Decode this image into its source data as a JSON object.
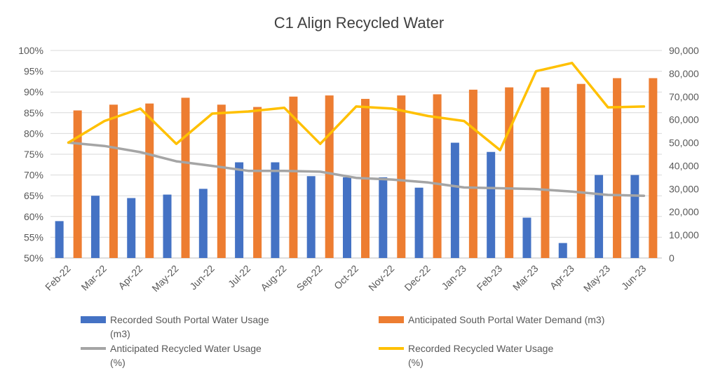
{
  "chart_data": {
    "type": "bar",
    "title": "C1 Align Recycled Water",
    "categories": [
      "Feb-22",
      "Mar-22",
      "Apr-22",
      "May-22",
      "Jun-22",
      "Jul-22",
      "Aug-22",
      "Sep-22",
      "Oct-22",
      "Nov-22",
      "Dec-22",
      "Jan-23",
      "Feb-23",
      "Mar-23",
      "Apr-23",
      "May-23",
      "Jun-23"
    ],
    "left_axis": {
      "ticks": [
        "50%",
        "55%",
        "60%",
        "65%",
        "70%",
        "75%",
        "80%",
        "85%",
        "90%",
        "95%",
        "100%"
      ],
      "ylim": [
        50,
        100
      ],
      "unit": "%"
    },
    "right_axis": {
      "ticks": [
        "0",
        "10,000",
        "20,000",
        "30,000",
        "40,000",
        "50,000",
        "60,000",
        "70,000",
        "80,000",
        "90,000"
      ],
      "ylim": [
        0,
        90000
      ]
    },
    "grid": true,
    "legend_position": "bottom",
    "series": [
      {
        "name": "Recorded South Portal Water Usage (m3)",
        "kind": "bar",
        "axis": "right",
        "color": "#4472C4",
        "values": [
          16000,
          27000,
          26000,
          27500,
          30000,
          41500,
          41500,
          35500,
          35000,
          35000,
          30500,
          50000,
          46000,
          17500,
          6500,
          36000,
          36000
        ]
      },
      {
        "name": "Anticipated South Portal Water Demand (m3)",
        "kind": "bar",
        "axis": "right",
        "color": "#ED7D31",
        "values": [
          64000,
          66500,
          67000,
          69500,
          66500,
          65500,
          70000,
          70500,
          69000,
          70500,
          71000,
          73000,
          74000,
          74000,
          75500,
          78000,
          78000
        ]
      },
      {
        "name": "Anticipated Recycled Water Usage (%)",
        "kind": "line",
        "axis": "left",
        "color": "#A5A5A5",
        "values": [
          77.8,
          77.0,
          75.5,
          73.3,
          72.2,
          71.0,
          71.0,
          70.8,
          69.3,
          68.9,
          68.2,
          67.0,
          66.8,
          66.6,
          66.0,
          65.2,
          65.0
        ]
      },
      {
        "name": "Recorded Recycled Water Usage (%)",
        "kind": "line",
        "axis": "left",
        "color": "#FFC000",
        "values": [
          77.8,
          83.0,
          86.0,
          77.5,
          84.8,
          85.3,
          86.2,
          77.5,
          86.5,
          86.0,
          84.2,
          83.0,
          76.0,
          95.0,
          97.0,
          86.3,
          86.5
        ]
      }
    ]
  }
}
